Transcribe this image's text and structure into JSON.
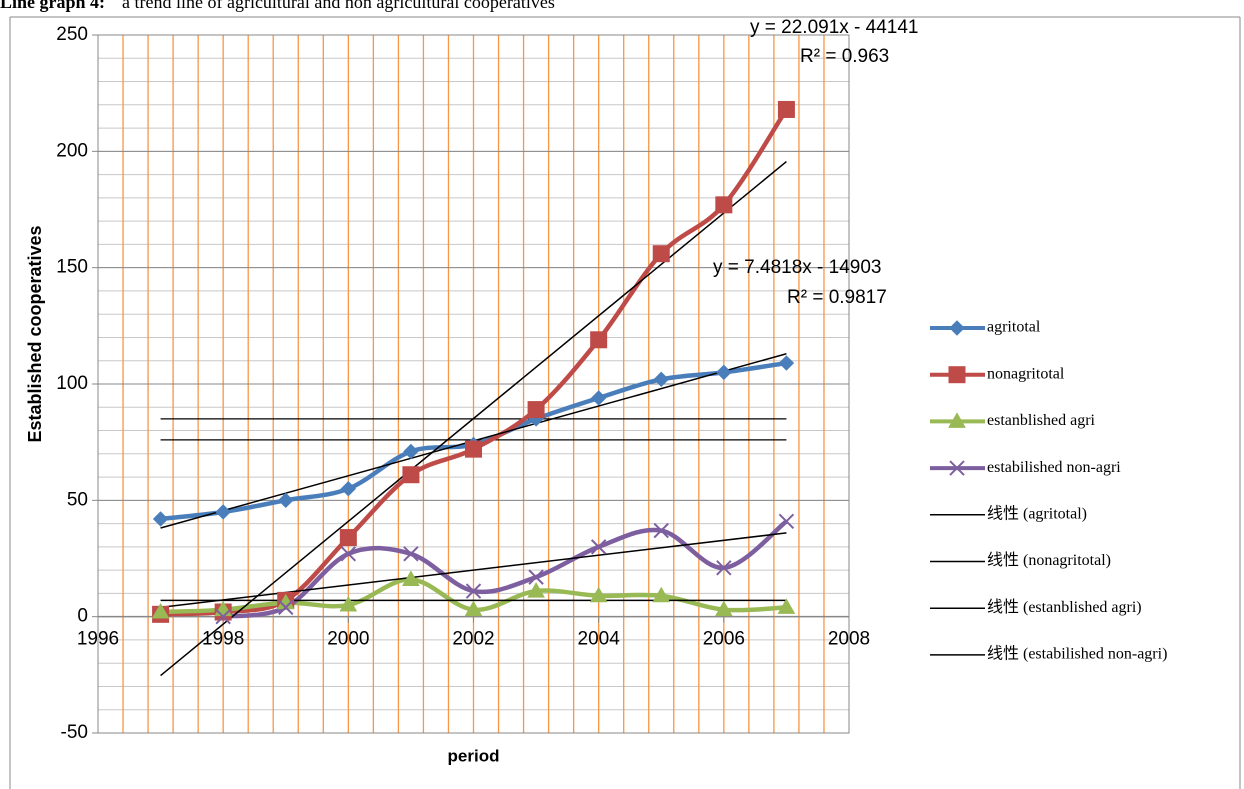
{
  "caption": {
    "label": "Line graph 4:",
    "text": "a trend line of agricultural and non agricultural cooperatives"
  },
  "chart_data": {
    "type": "line",
    "xlabel": "period",
    "ylabel": "Established cooperatives",
    "xlim": [
      1996,
      2008
    ],
    "xticks": [
      1996,
      1998,
      2000,
      2002,
      2004,
      2006,
      2008
    ],
    "ylim": [
      -50,
      250
    ],
    "yticks": [
      -50,
      0,
      50,
      100,
      150,
      200,
      250
    ],
    "x_minor_step": 0.4,
    "y_minor_step": 10,
    "grid": true,
    "legend": "right",
    "x": [
      1997,
      1998,
      1999,
      2000,
      2001,
      2002,
      2003,
      2004,
      2005,
      2006,
      2007
    ],
    "series": [
      {
        "name": "agritotal",
        "color": "#4a7ebb",
        "marker": "diamond",
        "values": [
          42,
          45,
          50,
          55,
          71,
          74,
          85,
          94,
          102,
          105,
          109
        ]
      },
      {
        "name": "nonagritotal",
        "color": "#be4b48",
        "marker": "square",
        "values": [
          1,
          2,
          7,
          34,
          61,
          72,
          89,
          119,
          156,
          177,
          218
        ]
      },
      {
        "name": "estanblished agri",
        "color": "#98b954",
        "marker": "triangle",
        "values": [
          2,
          3,
          6,
          5,
          16,
          3,
          11,
          9,
          9,
          3,
          4
        ]
      },
      {
        "name": "estabilished non-agri",
        "color": "#7d5fa0",
        "marker": "x",
        "values": [
          null,
          0,
          4,
          27,
          27,
          11,
          17,
          30,
          37,
          21,
          41
        ]
      }
    ],
    "trendlines": [
      {
        "name": "线性 (agritotal)",
        "color": "#000000",
        "x": [
          1997,
          2007
        ],
        "values": [
          38.1,
          113
        ]
      },
      {
        "name": "线性 (nonagritotal)",
        "color": "#000000",
        "x": [
          1997,
          2007
        ],
        "values": [
          -25.3,
          195.6
        ]
      },
      {
        "name": "线性 (estanblished agri)",
        "color": "#000000",
        "x": [
          1997,
          2007
        ],
        "values": [
          7,
          7
        ]
      },
      {
        "name": "线性 (estabilished non-agri)",
        "color": "#000000",
        "x": [
          1997,
          2007
        ],
        "values": [
          4,
          36
        ]
      }
    ],
    "reference_lines": [
      85,
      76
    ],
    "annotations": [
      "y = 22.091x - 44141",
      "R² = 0.963",
      "y = 7.4818x - 14903",
      "R² = 0.9817"
    ]
  }
}
